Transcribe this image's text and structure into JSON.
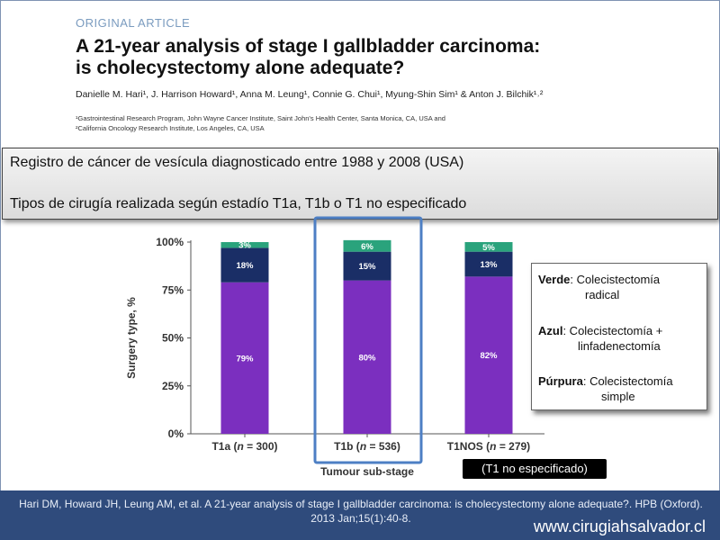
{
  "article": {
    "label": "ORIGINAL ARTICLE",
    "title_line1": "A 21-year analysis of stage I gallbladder carcinoma:",
    "title_line2": "is cholecystectomy alone adequate?",
    "authors": "Danielle M. Hari¹, J. Harrison Howard¹, Anna M. Leung¹, Connie G. Chui¹, Myung-Shin Sim¹ & Anton J. Bilchik¹˒²",
    "affiliation1": "¹Gastrointestinal Research Program, John Wayne Cancer Institute, Saint John's Health Center, Santa Monica, CA, USA and",
    "affiliation2": "²California Oncology Research Institute, Los Angeles, CA, USA"
  },
  "summary": {
    "line1": "Registro de cáncer de vesícula diagnosticado entre 1988 y 2008 (USA)",
    "line2": "Tipos de cirugía realizada según estadío T1a, T1b o T1 no especificado"
  },
  "chart_data": {
    "type": "bar",
    "stacked": true,
    "categories": [
      "T1a (n = 300)",
      "T1b (n = 536)",
      "T1NOS (n = 279)"
    ],
    "series": [
      {
        "name": "",
        "values": [
          79,
          80,
          82
        ],
        "labels": [
          "79%",
          "80%",
          "82%"
        ],
        "color": "#7b2fbf"
      },
      {
        "name": "",
        "values": [
          18,
          15,
          13
        ],
        "labels": [
          "18%",
          "15%",
          "13%"
        ],
        "color": "#1a2e66"
      },
      {
        "name": "",
        "values": [
          3,
          6,
          5
        ],
        "labels": [
          "3%",
          "6%",
          "5%"
        ],
        "color": "#2aa37c"
      }
    ],
    "ylabel": "Surgery type, %",
    "xlabel": "Tumour sub-stage",
    "ylim": [
      0,
      100
    ],
    "yticks": [
      "0%",
      "25%",
      "50%",
      "75%",
      "100%"
    ],
    "highlighted_category": "T1b (n = 536)",
    "highlight_color": "#4d7fc4"
  },
  "legend": {
    "verde_key": "Verde",
    "verde_text": ": Colecistectomía",
    "verde_cont": "radical",
    "azul_key": "Azul",
    "azul_text": ":  Colecistectomía +",
    "azul_cont": "linfadenectomía",
    "purpura_key": "Púrpura",
    "purpura_text": ": Colecistectomía",
    "purpura_cont": "simple"
  },
  "note": "(T1 no especificado)",
  "footer": {
    "citation": "Hari DM, Howard JH, Leung AM, et al. A 21-year analysis of stage I gallbladder carcinoma: is cholecystectomy alone adequate?.  HPB (Oxford). 2013 Jan;15(1):40-8.",
    "site": "www.cirugiahsalvador.cl"
  }
}
